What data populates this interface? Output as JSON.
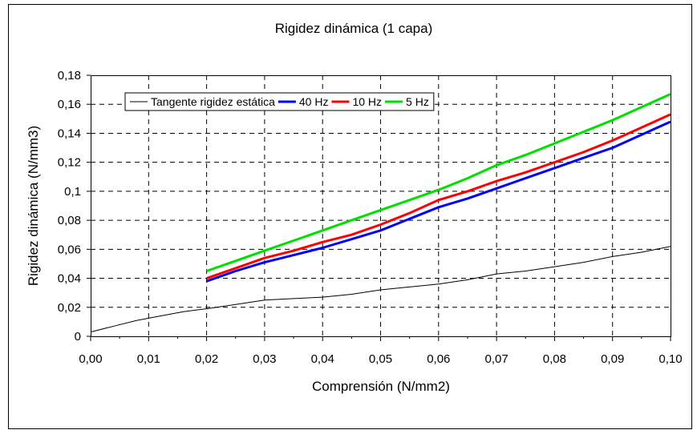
{
  "chart_data": {
    "type": "line",
    "title": "Rigidez dinámica (1 capa)",
    "xlabel": "Comprensión (N/mm2)",
    "ylabel": "Rigidez dinámica (N/mm3)",
    "xlim": [
      0,
      0.1
    ],
    "ylim": [
      0,
      0.18
    ],
    "x_ticks": [
      "0,00",
      "0,01",
      "0,02",
      "0,03",
      "0,04",
      "0,05",
      "0,06",
      "0,07",
      "0,08",
      "0,09",
      "0,10"
    ],
    "y_ticks": [
      "0",
      "0,02",
      "0,04",
      "0,06",
      "0,08",
      "0,1",
      "0,12",
      "0,14",
      "0,16",
      "0,18"
    ],
    "grid": true,
    "legend_position": "top-left",
    "series": [
      {
        "name": "Tangente rigidez estática",
        "color": "#000000",
        "x": [
          0.0,
          0.004,
          0.008,
          0.012,
          0.016,
          0.02,
          0.025,
          0.03,
          0.035,
          0.04,
          0.045,
          0.05,
          0.055,
          0.06,
          0.065,
          0.07,
          0.075,
          0.08,
          0.085,
          0.09,
          0.095,
          0.1
        ],
        "y": [
          0.003,
          0.007,
          0.011,
          0.014,
          0.017,
          0.019,
          0.022,
          0.025,
          0.026,
          0.027,
          0.029,
          0.032,
          0.034,
          0.036,
          0.039,
          0.043,
          0.045,
          0.048,
          0.051,
          0.055,
          0.058,
          0.062
        ]
      },
      {
        "name": "40 Hz",
        "color": "#0000ff",
        "x": [
          0.02,
          0.025,
          0.03,
          0.035,
          0.04,
          0.045,
          0.05,
          0.055,
          0.06,
          0.065,
          0.07,
          0.075,
          0.08,
          0.085,
          0.09,
          0.095,
          0.1
        ],
        "y": [
          0.038,
          0.045,
          0.051,
          0.056,
          0.061,
          0.067,
          0.073,
          0.081,
          0.089,
          0.095,
          0.102,
          0.109,
          0.116,
          0.123,
          0.13,
          0.139,
          0.148
        ]
      },
      {
        "name": "10 Hz",
        "color": "#ff0000",
        "x": [
          0.02,
          0.025,
          0.03,
          0.035,
          0.04,
          0.045,
          0.05,
          0.055,
          0.06,
          0.065,
          0.07,
          0.075,
          0.08,
          0.085,
          0.09,
          0.095,
          0.1
        ],
        "y": [
          0.04,
          0.047,
          0.054,
          0.059,
          0.065,
          0.07,
          0.077,
          0.085,
          0.094,
          0.1,
          0.107,
          0.113,
          0.12,
          0.127,
          0.135,
          0.144,
          0.153
        ]
      },
      {
        "name": "5 Hz",
        "color": "#00e000",
        "x": [
          0.02,
          0.025,
          0.03,
          0.035,
          0.04,
          0.045,
          0.05,
          0.055,
          0.06,
          0.065,
          0.07,
          0.075,
          0.08,
          0.085,
          0.09,
          0.095,
          0.1
        ],
        "y": [
          0.045,
          0.052,
          0.059,
          0.066,
          0.073,
          0.08,
          0.087,
          0.094,
          0.101,
          0.109,
          0.118,
          0.125,
          0.133,
          0.141,
          0.149,
          0.158,
          0.167
        ]
      }
    ]
  }
}
